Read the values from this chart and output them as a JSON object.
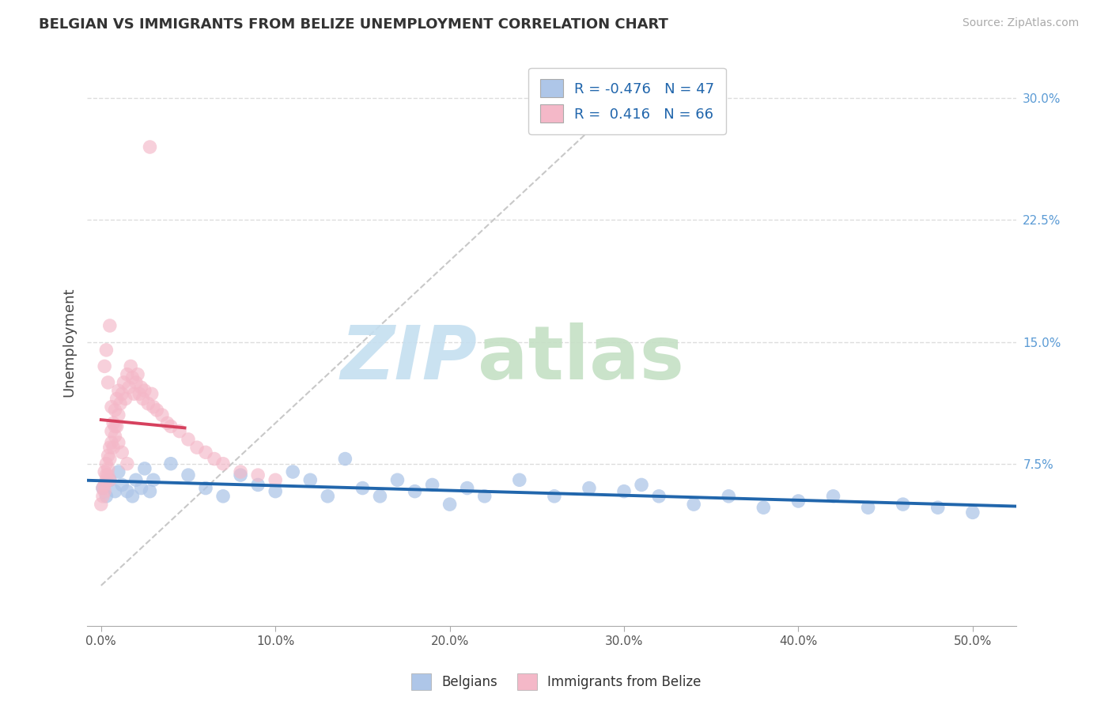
{
  "title": "BELGIAN VS IMMIGRANTS FROM BELIZE UNEMPLOYMENT CORRELATION CHART",
  "source": "Source: ZipAtlas.com",
  "ylabel": "Unemployment",
  "x_tick_labels": [
    "0.0%",
    "10.0%",
    "20.0%",
    "30.0%",
    "40.0%",
    "50.0%"
  ],
  "x_tick_values": [
    0.0,
    0.1,
    0.2,
    0.3,
    0.4,
    0.5
  ],
  "y_tick_labels": [
    "7.5%",
    "15.0%",
    "22.5%",
    "30.0%"
  ],
  "y_tick_values": [
    0.075,
    0.15,
    0.225,
    0.3
  ],
  "xlim": [
    -0.008,
    0.525
  ],
  "ylim": [
    -0.025,
    0.325
  ],
  "legend_labels": [
    "Belgians",
    "Immigrants from Belize"
  ],
  "legend_r_n": [
    {
      "R": "-0.476",
      "N": "47"
    },
    {
      "R": " 0.416",
      "N": "66"
    }
  ],
  "blue_color": "#aec6e8",
  "pink_color": "#f4b8c8",
  "blue_line_color": "#2166ac",
  "pink_line_color": "#d6415e",
  "grid_color": "#dddddd",
  "belgians_x": [
    0.001,
    0.003,
    0.005,
    0.008,
    0.01,
    0.012,
    0.015,
    0.018,
    0.02,
    0.023,
    0.025,
    0.028,
    0.03,
    0.04,
    0.05,
    0.06,
    0.07,
    0.08,
    0.09,
    0.1,
    0.11,
    0.12,
    0.13,
    0.14,
    0.15,
    0.16,
    0.17,
    0.18,
    0.19,
    0.2,
    0.21,
    0.22,
    0.24,
    0.26,
    0.28,
    0.3,
    0.31,
    0.32,
    0.34,
    0.36,
    0.38,
    0.4,
    0.42,
    0.44,
    0.46,
    0.48,
    0.5
  ],
  "belgians_y": [
    0.06,
    0.055,
    0.065,
    0.058,
    0.07,
    0.062,
    0.058,
    0.055,
    0.065,
    0.06,
    0.072,
    0.058,
    0.065,
    0.075,
    0.068,
    0.06,
    0.055,
    0.068,
    0.062,
    0.058,
    0.07,
    0.065,
    0.055,
    0.078,
    0.06,
    0.055,
    0.065,
    0.058,
    0.062,
    0.05,
    0.06,
    0.055,
    0.065,
    0.055,
    0.06,
    0.058,
    0.062,
    0.055,
    0.05,
    0.055,
    0.048,
    0.052,
    0.055,
    0.048,
    0.05,
    0.048,
    0.045
  ],
  "belize_x": [
    0.0,
    0.001,
    0.001,
    0.002,
    0.002,
    0.002,
    0.003,
    0.003,
    0.003,
    0.004,
    0.004,
    0.004,
    0.005,
    0.005,
    0.005,
    0.006,
    0.006,
    0.007,
    0.007,
    0.008,
    0.008,
    0.009,
    0.009,
    0.01,
    0.01,
    0.011,
    0.012,
    0.013,
    0.014,
    0.015,
    0.016,
    0.017,
    0.018,
    0.019,
    0.02,
    0.021,
    0.022,
    0.023,
    0.024,
    0.025,
    0.027,
    0.029,
    0.03,
    0.032,
    0.035,
    0.038,
    0.04,
    0.045,
    0.05,
    0.055,
    0.06,
    0.065,
    0.07,
    0.08,
    0.09,
    0.1,
    0.028,
    0.005,
    0.003,
    0.002,
    0.004,
    0.006,
    0.008,
    0.01,
    0.012,
    0.015
  ],
  "belize_y": [
    0.05,
    0.055,
    0.06,
    0.058,
    0.062,
    0.07,
    0.065,
    0.068,
    0.075,
    0.072,
    0.08,
    0.068,
    0.078,
    0.085,
    0.065,
    0.088,
    0.095,
    0.1,
    0.085,
    0.108,
    0.092,
    0.115,
    0.098,
    0.12,
    0.105,
    0.112,
    0.118,
    0.125,
    0.115,
    0.13,
    0.122,
    0.135,
    0.128,
    0.118,
    0.125,
    0.13,
    0.118,
    0.122,
    0.115,
    0.12,
    0.112,
    0.118,
    0.11,
    0.108,
    0.105,
    0.1,
    0.098,
    0.095,
    0.09,
    0.085,
    0.082,
    0.078,
    0.075,
    0.07,
    0.068,
    0.065,
    0.27,
    0.16,
    0.145,
    0.135,
    0.125,
    0.11,
    0.098,
    0.088,
    0.082,
    0.075
  ]
}
